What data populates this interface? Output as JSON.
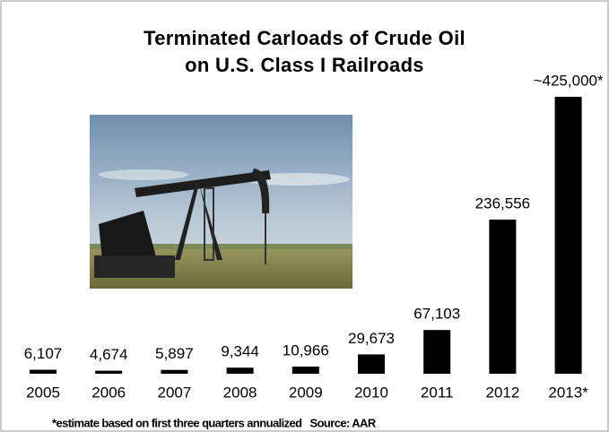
{
  "chart_data": {
    "type": "bar",
    "title": "Terminated Carloads of Crude Oil\non U.S. Class I Railroads",
    "categories": [
      "2005",
      "2006",
      "2007",
      "2008",
      "2009",
      "2010",
      "2011",
      "2012",
      "2013*"
    ],
    "values": [
      6107,
      4674,
      5897,
      9344,
      10966,
      29673,
      67103,
      236556,
      425000
    ],
    "value_labels": [
      "6,107",
      "4,674",
      "5,897",
      "9,344",
      "10,966",
      "29,673",
      "67,103",
      "236,556",
      "~425,000*"
    ],
    "color": "#000000",
    "note": "*estimate based on first three quarters annualized   Source: AAR"
  }
}
